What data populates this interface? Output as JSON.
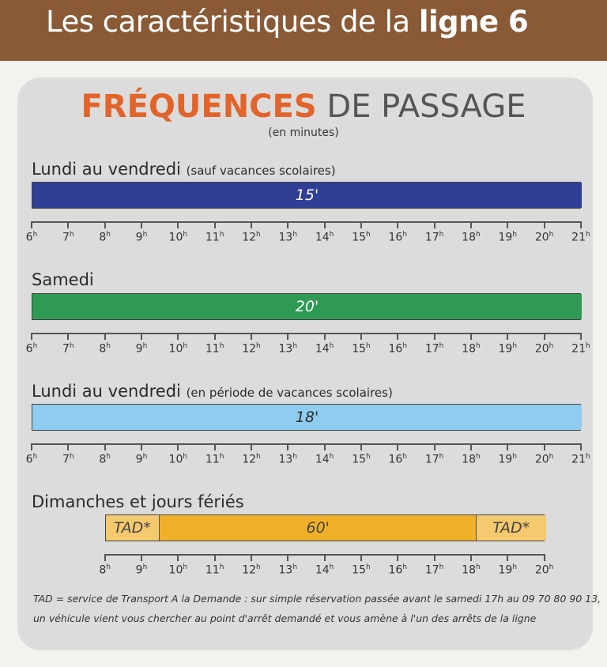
{
  "header": {
    "title_prefix": "Les caractéristiques de la ",
    "title_bold": "ligne 6"
  },
  "main_title": {
    "part1": "FRÉQUENCES",
    "part2": " DE PASSAGE",
    "subtitle": "(en minutes)"
  },
  "hour_unit": "h",
  "sections": [
    {
      "name": "Lundi au vendredi",
      "note": "(sauf vacances scolaires)",
      "color": "#2f3f95",
      "start_hour": 6,
      "end_hour": 21,
      "segments": [
        {
          "label": "15'",
          "from": 6,
          "to": 21,
          "color": "#2f3f95",
          "text_color": "#ffffff"
        }
      ],
      "ticks": [
        6,
        7,
        8,
        9,
        10,
        11,
        12,
        13,
        14,
        15,
        16,
        17,
        18,
        19,
        20,
        21
      ]
    },
    {
      "name": "Samedi",
      "note": "",
      "color": "#2e9a54",
      "start_hour": 6,
      "end_hour": 21,
      "segments": [
        {
          "label": "20'",
          "from": 6,
          "to": 21,
          "color": "#2e9a54",
          "text_color": "#ffffff"
        }
      ],
      "ticks": [
        6,
        7,
        8,
        9,
        10,
        11,
        12,
        13,
        14,
        15,
        16,
        17,
        18,
        19,
        20,
        21
      ]
    },
    {
      "name": "Lundi au vendredi",
      "note": "(en période de vacances scolaires)",
      "color": "#8fcdf0",
      "start_hour": 6,
      "end_hour": 21,
      "segments": [
        {
          "label": "18'",
          "from": 6,
          "to": 21,
          "color": "#8fcdf0",
          "text_color": "#2a2a2a"
        }
      ],
      "ticks": [
        6,
        7,
        8,
        9,
        10,
        11,
        12,
        13,
        14,
        15,
        16,
        17,
        18,
        19,
        20,
        21
      ]
    },
    {
      "name": "Dimanches et jours fériés",
      "note": "",
      "color": "#f0b02a",
      "start_hour": 8,
      "end_hour": 20,
      "segments": [
        {
          "label": "TAD*",
          "from": 8,
          "to": 9.45,
          "color": "#f5c96d",
          "text_color": "#444444"
        },
        {
          "label": "60'",
          "from": 9.45,
          "to": 18.1,
          "color": "#f0b02a",
          "text_color": "#444444"
        },
        {
          "label": "TAD*",
          "from": 18.1,
          "to": 20,
          "color": "#f5c96d",
          "text_color": "#444444"
        }
      ],
      "ticks": [
        8,
        9,
        10,
        11,
        12,
        13,
        14,
        15,
        16,
        17,
        18,
        19,
        20
      ]
    }
  ],
  "footnote": {
    "line1": "TAD = service de Transport A la Demande : sur simple réservation passée avant le samedi 17h au 09 70 80 90 13,",
    "line2": "un véhicule vient vous chercher au point d'arrêt demandé et vous amène à l'un des arrêts de la ligne"
  }
}
